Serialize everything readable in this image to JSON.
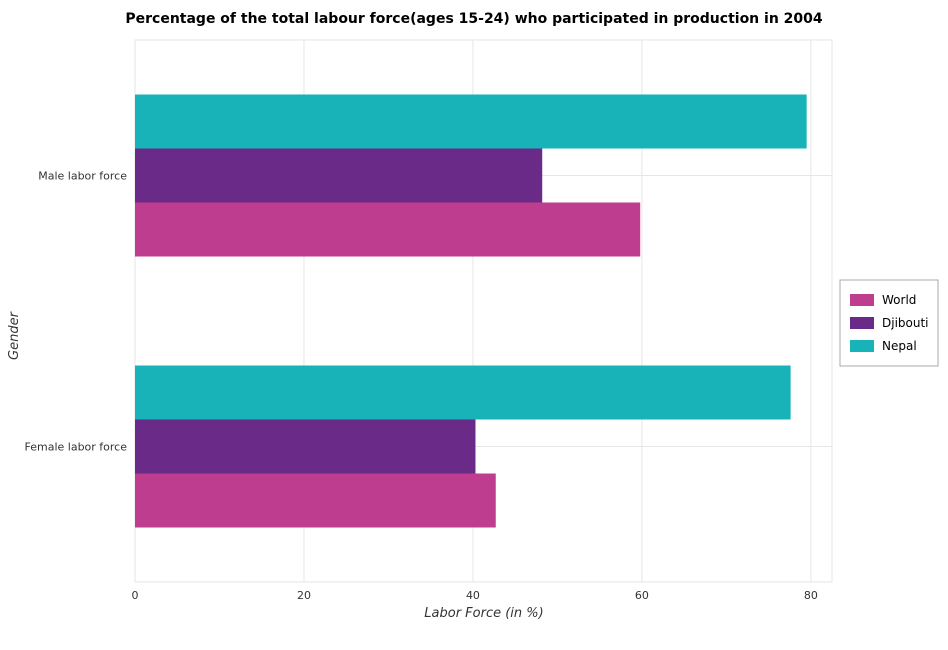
{
  "chart_data": {
    "type": "bar",
    "orientation": "horizontal",
    "title": "Percentage of the total labour force(ages 15-24) who participated in production in 2004",
    "xlabel": "Labor Force (in %)",
    "ylabel": "Gender",
    "categories": [
      "Female labor force",
      "Male labor force"
    ],
    "series": [
      {
        "name": "World",
        "color": "#bf3d8e",
        "values": [
          42.7,
          59.8
        ]
      },
      {
        "name": "Djibouti",
        "color": "#6a2a88",
        "values": [
          40.3,
          48.2
        ]
      },
      {
        "name": "Nepal",
        "color": "#17b3b8",
        "values": [
          77.6,
          79.5
        ]
      }
    ],
    "xlim": [
      0,
      82.5
    ],
    "xticks": [
      0,
      20,
      40,
      60,
      80
    ],
    "grid": true,
    "legend_position": "right"
  }
}
